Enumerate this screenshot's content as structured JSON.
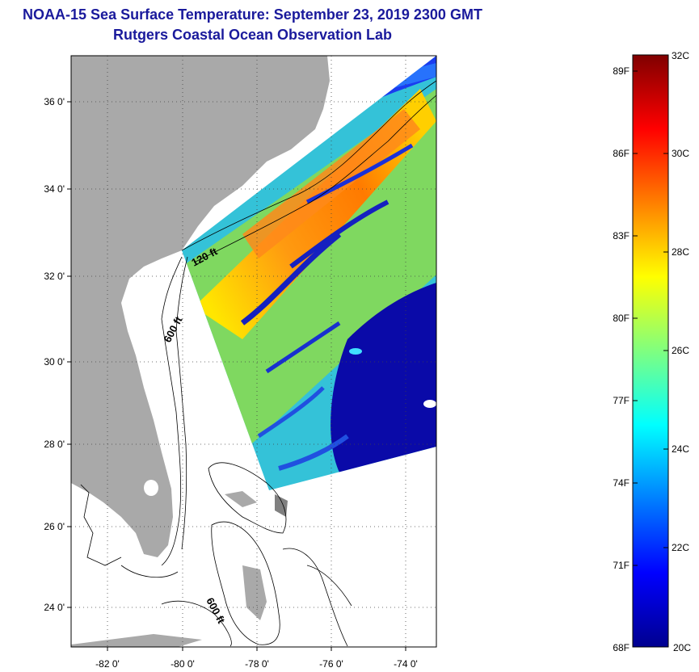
{
  "title": {
    "line1": "NOAA-15 Sea Surface Temperature:  September 23, 2019 2300 GMT",
    "line2": "Rutgers Coastal Ocean Observation Lab"
  },
  "map": {
    "lon_ticks": [
      "-82 0'",
      "-80 0'",
      "-78 0'",
      "-76 0'",
      "-74 0'"
    ],
    "lat_ticks": [
      "36 0'",
      "34 0'",
      "32 0'",
      "30 0'",
      "28 0'",
      "26 0'",
      "24 0'"
    ],
    "contour_labels": [
      "120 ft",
      "600 ft",
      "600 ft"
    ],
    "colors": {
      "land": "#a9a9a9",
      "no_data": "#ffffff",
      "cold": "#00008f",
      "warm": "#ff6a00"
    }
  },
  "colorbar": {
    "range_c": [
      20,
      32
    ],
    "fahrenheit_labels": [
      "89F",
      "86F",
      "83F",
      "80F",
      "77F",
      "74F",
      "71F",
      "68F"
    ],
    "celsius_labels": [
      "32C",
      "30C",
      "28C",
      "26C",
      "24C",
      "22C",
      "20C"
    ],
    "colormap": "jet"
  }
}
